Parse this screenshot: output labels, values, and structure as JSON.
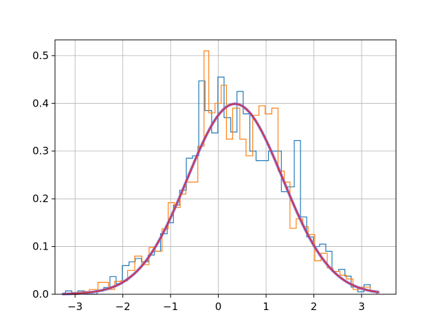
{
  "chart_data": {
    "type": "histogram",
    "title": "",
    "xlabel": "",
    "ylabel": "",
    "xlim": [
      -3.42,
      3.72
    ],
    "ylim": [
      0.0,
      0.533
    ],
    "grid": true,
    "x_ticks": [
      -3,
      -2,
      -1,
      0,
      1,
      2,
      3
    ],
    "x_tick_labels": [
      "−3",
      "−2",
      "−1",
      "0",
      "1",
      "2",
      "3"
    ],
    "y_ticks": [
      0.0,
      0.1,
      0.2,
      0.3,
      0.4,
      0.5
    ],
    "y_tick_labels": [
      "0.0",
      "0.1",
      "0.2",
      "0.3",
      "0.4",
      "0.5"
    ],
    "series": [
      {
        "kind": "step",
        "color": "#1f77b4",
        "edges": [
          -3.2,
          -3.07,
          -2.94,
          -2.8,
          -2.67,
          -2.54,
          -2.4,
          -2.27,
          -2.14,
          -2.01,
          -1.87,
          -1.74,
          -1.61,
          -1.47,
          -1.34,
          -1.21,
          -1.07,
          -0.94,
          -0.81,
          -0.67,
          -0.54,
          -0.41,
          -0.28,
          -0.14,
          -0.01,
          0.12,
          0.26,
          0.39,
          0.52,
          0.66,
          0.79,
          0.92,
          1.05,
          1.19,
          1.32,
          1.45,
          1.59,
          1.72,
          1.85,
          1.99,
          2.12,
          2.25,
          2.38,
          2.52,
          2.65,
          2.78,
          2.92,
          3.05,
          3.18,
          3.32
        ],
        "values": [
          0.007,
          0.0,
          0.007,
          0.0,
          0.0,
          0.007,
          0.014,
          0.037,
          0.022,
          0.06,
          0.068,
          0.075,
          0.068,
          0.082,
          0.09,
          0.127,
          0.15,
          0.187,
          0.218,
          0.285,
          0.29,
          0.447,
          0.385,
          0.338,
          0.455,
          0.37,
          0.34,
          0.425,
          0.378,
          0.3,
          0.28,
          0.28,
          0.3,
          0.3,
          0.215,
          0.225,
          0.322,
          0.162,
          0.12,
          0.1,
          0.105,
          0.09,
          0.048,
          0.052,
          0.038,
          0.015,
          0.005,
          0.02,
          0.005
        ]
      },
      {
        "kind": "step",
        "color": "#ff7f0e",
        "edges": [
          -3.05,
          -2.85,
          -2.7,
          -2.52,
          -2.3,
          -2.17,
          -2.05,
          -1.9,
          -1.75,
          -1.6,
          -1.45,
          -1.32,
          -1.18,
          -1.05,
          -0.92,
          -0.8,
          -0.68,
          -0.55,
          -0.43,
          -0.3,
          -0.2,
          -0.07,
          0.06,
          0.17,
          0.3,
          0.45,
          0.58,
          0.72,
          0.85,
          0.98,
          1.12,
          1.25,
          1.38,
          1.5,
          1.63,
          1.77,
          1.88,
          2.02,
          2.15,
          2.28,
          2.4,
          2.55,
          2.68,
          2.82,
          2.95,
          3.07,
          3.18,
          3.32
        ],
        "values": [
          0.004,
          0.006,
          0.01,
          0.025,
          0.01,
          0.027,
          0.028,
          0.05,
          0.08,
          0.062,
          0.098,
          0.09,
          0.137,
          0.192,
          0.182,
          0.21,
          0.235,
          0.235,
          0.31,
          0.51,
          0.38,
          0.4,
          0.438,
          0.325,
          0.39,
          0.325,
          0.29,
          0.375,
          0.395,
          0.378,
          0.39,
          0.258,
          0.235,
          0.138,
          0.158,
          0.142,
          0.125,
          0.07,
          0.086,
          0.055,
          0.048,
          0.04,
          0.032,
          0.01,
          0.015,
          0.015,
          0.007
        ]
      },
      {
        "kind": "pdf",
        "color": "#8e6fd8",
        "linewidth": "thick",
        "mu": 0.35,
        "sigma": 1.0,
        "x_range": [
          -3.25,
          3.35
        ]
      },
      {
        "kind": "pdf",
        "color": "#d62728",
        "linewidth": "thin",
        "mu": 0.35,
        "sigma": 1.0,
        "x_range": [
          -3.25,
          3.35
        ]
      }
    ]
  }
}
